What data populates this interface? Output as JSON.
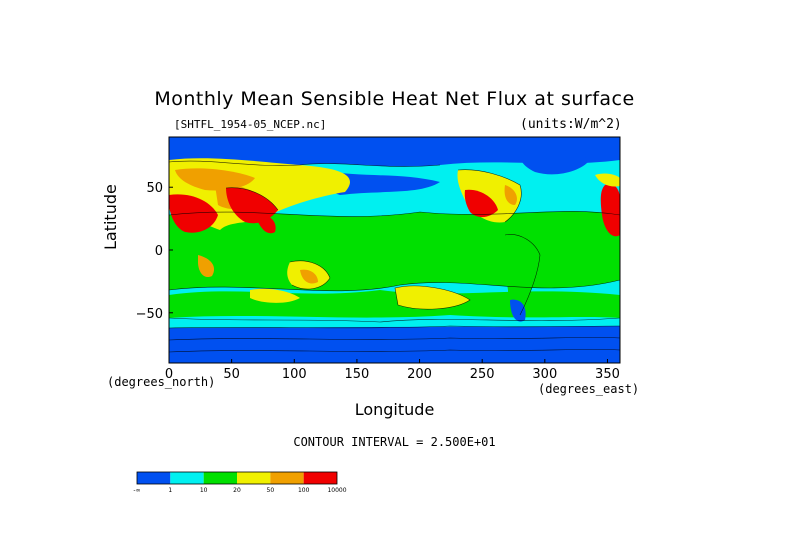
{
  "chart_data": {
    "type": "heatmap",
    "title": "Monthly Mean Sensible Heat Net Flux at surface",
    "source_label": "[SHTFL_1954-05_NCEP.nc]",
    "units_label": "(units:W/m^2)",
    "xlabel": "Longitude",
    "ylabel": "Latitude",
    "x_units": "(degrees_east)",
    "y_units": "(degrees_north)",
    "xlim": [
      0,
      360
    ],
    "ylim": [
      -90,
      90
    ],
    "x_ticks": [
      0,
      50,
      100,
      150,
      200,
      250,
      300,
      350
    ],
    "y_ticks": [
      -50,
      0,
      50
    ],
    "contour_text": "CONTOUR INTERVAL = 2.500E+01",
    "colorbar": {
      "boundaries": [
        "-∞",
        "1",
        "10",
        "20",
        "50",
        "100",
        "10000"
      ],
      "colors": [
        "#0050f0",
        "#00f0f0",
        "#00e000",
        "#f0f000",
        "#f0a000",
        "#f00000"
      ]
    }
  }
}
